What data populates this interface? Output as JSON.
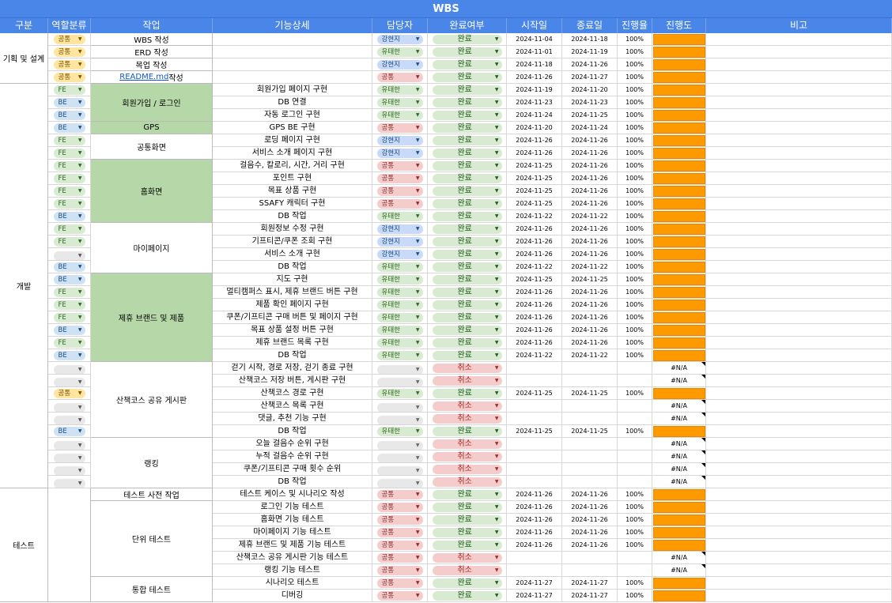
{
  "title": "WBS",
  "headers": [
    "구분",
    "역할분류",
    "작업",
    "기능상세",
    "담당자",
    "완료여부",
    "시작일",
    "종료일",
    "진행율",
    "진행도",
    "비고"
  ],
  "categories": [
    {
      "label": "기획 및 설계",
      "start": 0,
      "end": 4
    },
    {
      "label": "개발",
      "start": 4,
      "end": 36
    },
    {
      "label": "테스트",
      "start": 36,
      "end": 45
    }
  ],
  "tasks": [
    {
      "label": "WBS 작성",
      "start": 0,
      "end": 1,
      "green": false
    },
    {
      "label": "ERD 작성",
      "start": 1,
      "end": 2,
      "green": false
    },
    {
      "label": "목업 작성",
      "start": 2,
      "end": 3,
      "green": false
    },
    {
      "label": "README.md 작성",
      "start": 3,
      "end": 4,
      "green": false
    },
    {
      "label": "회원가입 / 로그인",
      "start": 4,
      "end": 7,
      "green": true
    },
    {
      "label": "GPS",
      "start": 7,
      "end": 8,
      "green": true
    },
    {
      "label": "공통화면",
      "start": 8,
      "end": 10,
      "green": false
    },
    {
      "label": "홈화면",
      "start": 10,
      "end": 15,
      "green": true
    },
    {
      "label": "마이페이지",
      "start": 15,
      "end": 19,
      "green": false
    },
    {
      "label": "제휴 브랜드 및 제품",
      "start": 19,
      "end": 26,
      "green": true
    },
    {
      "label": "산책코스 공유 게시판",
      "start": 26,
      "end": 32,
      "green": false
    },
    {
      "label": "랭킹",
      "start": 32,
      "end": 36,
      "green": false
    },
    {
      "label": "테스트 사전 작업",
      "start": 36,
      "end": 37,
      "green": false
    },
    {
      "label": "단위 테스트",
      "start": 37,
      "end": 43,
      "green": false
    },
    {
      "label": "통합 테스트",
      "start": 43,
      "end": 45,
      "green": false
    }
  ],
  "readme": {
    "link_text": "README.md",
    "suffix": " 작성"
  },
  "rows": [
    {
      "role": "공통",
      "detail": "",
      "owner": "강현지",
      "done": "완료",
      "start": "2024-11-04",
      "end": "2024-11-18",
      "pct": "100%",
      "progress": 1.0,
      "note": ""
    },
    {
      "role": "공통",
      "detail": "",
      "owner": "유태한",
      "done": "완료",
      "start": "2024-11-01",
      "end": "2024-11-19",
      "pct": "100%",
      "progress": 1.0,
      "note": ""
    },
    {
      "role": "공통",
      "detail": "",
      "owner": "강현지",
      "done": "완료",
      "start": "2024-11-18",
      "end": "2024-11-26",
      "pct": "100%",
      "progress": 1.0,
      "note": ""
    },
    {
      "role": "공통",
      "detail": "",
      "owner": "공통",
      "done": "완료",
      "start": "2024-11-26",
      "end": "2024-11-27",
      "pct": "100%",
      "progress": 1.0,
      "note": ""
    },
    {
      "role": "FE",
      "detail": "회원가입 페이지 구현",
      "owner": "유태한",
      "done": "완료",
      "start": "2024-11-19",
      "end": "2024-11-20",
      "pct": "100%",
      "progress": 1.0,
      "note": ""
    },
    {
      "role": "BE",
      "detail": "DB 연결",
      "owner": "유태한",
      "done": "완료",
      "start": "2024-11-23",
      "end": "2024-11-23",
      "pct": "100%",
      "progress": 1.0,
      "note": ""
    },
    {
      "role": "BE",
      "detail": "자동 로그인 구현",
      "owner": "유태한",
      "done": "완료",
      "start": "2024-11-24",
      "end": "2024-11-25",
      "pct": "100%",
      "progress": 1.0,
      "note": ""
    },
    {
      "role": "BE",
      "detail": "GPS BE 구현",
      "owner": "공통",
      "done": "완료",
      "start": "2024-11-20",
      "end": "2024-11-24",
      "pct": "100%",
      "progress": 1.0,
      "note": ""
    },
    {
      "role": "FE",
      "detail": "로딩 페이지 구현",
      "owner": "강현지",
      "done": "완료",
      "start": "2024-11-26",
      "end": "2024-11-26",
      "pct": "100%",
      "progress": 1.0,
      "note": ""
    },
    {
      "role": "FE",
      "detail": "서비스 소개 페이지 구현",
      "owner": "강현지",
      "done": "완료",
      "start": "2024-11-26",
      "end": "2024-11-26",
      "pct": "100%",
      "progress": 1.0,
      "note": ""
    },
    {
      "role": "FE",
      "detail": "걸음수, 칼로리, 시간, 거리 구현",
      "owner": "공통",
      "done": "완료",
      "start": "2024-11-25",
      "end": "2024-11-26",
      "pct": "100%",
      "progress": 1.0,
      "note": ""
    },
    {
      "role": "FE",
      "detail": "포인트 구현",
      "owner": "공통",
      "done": "완료",
      "start": "2024-11-25",
      "end": "2024-11-26",
      "pct": "100%",
      "progress": 1.0,
      "note": ""
    },
    {
      "role": "FE",
      "detail": "목표 상품 구현",
      "owner": "공통",
      "done": "완료",
      "start": "2024-11-25",
      "end": "2024-11-26",
      "pct": "100%",
      "progress": 1.0,
      "note": ""
    },
    {
      "role": "FE",
      "detail": "SSAFY 캐릭터 구현",
      "owner": "공통",
      "done": "완료",
      "start": "2024-11-25",
      "end": "2024-11-26",
      "pct": "100%",
      "progress": 1.0,
      "note": ""
    },
    {
      "role": "BE",
      "detail": "DB 작업",
      "owner": "유태한",
      "done": "완료",
      "start": "2024-11-22",
      "end": "2024-11-22",
      "pct": "100%",
      "progress": 1.0,
      "note": ""
    },
    {
      "role": "FE",
      "detail": "회원정보 수정 구현",
      "owner": "강현지",
      "done": "완료",
      "start": "2024-11-26",
      "end": "2024-11-26",
      "pct": "100%",
      "progress": 1.0,
      "note": ""
    },
    {
      "role": "FE",
      "detail": "기프티콘/쿠폰 조회 구현",
      "owner": "강현지",
      "done": "완료",
      "start": "2024-11-26",
      "end": "2024-11-26",
      "pct": "100%",
      "progress": 1.0,
      "note": ""
    },
    {
      "role": "",
      "detail": "서비스 소개 구현",
      "owner": "강현지",
      "done": "완료",
      "start": "2024-11-26",
      "end": "2024-11-26",
      "pct": "100%",
      "progress": 1.0,
      "note": ""
    },
    {
      "role": "BE",
      "detail": "DB 작업",
      "owner": "유태한",
      "done": "완료",
      "start": "2024-11-22",
      "end": "2024-11-22",
      "pct": "100%",
      "progress": 1.0,
      "note": ""
    },
    {
      "role": "BE",
      "detail": "지도 구현",
      "owner": "유태한",
      "done": "완료",
      "start": "2024-11-25",
      "end": "2024-11-25",
      "pct": "100%",
      "progress": 1.0,
      "note": ""
    },
    {
      "role": "FE",
      "detail": "멀티캠퍼스 표시, 제휴 브랜드 버튼 구현",
      "owner": "유태한",
      "done": "완료",
      "start": "2024-11-26",
      "end": "2024-11-26",
      "pct": "100%",
      "progress": 1.0,
      "note": ""
    },
    {
      "role": "FE",
      "detail": "제품 확인 페이지 구현",
      "owner": "유태한",
      "done": "완료",
      "start": "2024-11-26",
      "end": "2024-11-26",
      "pct": "100%",
      "progress": 1.0,
      "note": ""
    },
    {
      "role": "FE",
      "detail": "쿠폰/기프티콘 구매 버튼 및 페이지 구현",
      "owner": "유태한",
      "done": "완료",
      "start": "2024-11-26",
      "end": "2024-11-26",
      "pct": "100%",
      "progress": 1.0,
      "note": ""
    },
    {
      "role": "BE",
      "detail": "목표 상품 설정 버튼 구현",
      "owner": "유태한",
      "done": "완료",
      "start": "2024-11-26",
      "end": "2024-11-26",
      "pct": "100%",
      "progress": 1.0,
      "note": ""
    },
    {
      "role": "FE",
      "detail": "제휴 브랜드 목록 구현",
      "owner": "유태한",
      "done": "완료",
      "start": "2024-11-26",
      "end": "2024-11-26",
      "pct": "100%",
      "progress": 1.0,
      "note": ""
    },
    {
      "role": "BE",
      "detail": "DB 작업",
      "owner": "유태한",
      "done": "완료",
      "start": "2024-11-22",
      "end": "2024-11-22",
      "pct": "100%",
      "progress": 1.0,
      "note": ""
    },
    {
      "role": "",
      "detail": "걷기 시작, 경로 저장, 걷기 종료 구현",
      "owner": "",
      "done": "취소",
      "start": "",
      "end": "",
      "pct": "",
      "progress": 0,
      "note": "#N/A"
    },
    {
      "role": "",
      "detail": "산책코스 저장 버튼, 게시판 구현",
      "owner": "",
      "done": "취소",
      "start": "",
      "end": "",
      "pct": "",
      "progress": 0,
      "note": "#N/A"
    },
    {
      "role": "공통",
      "detail": "산책코스 경로 구현",
      "owner": "유태한",
      "done": "완료",
      "start": "2024-11-25",
      "end": "2024-11-25",
      "pct": "100%",
      "progress": 1.0,
      "note": ""
    },
    {
      "role": "",
      "detail": "산책코스 목록 구현",
      "owner": "",
      "done": "취소",
      "start": "",
      "end": "",
      "pct": "",
      "progress": 0,
      "note": "#N/A"
    },
    {
      "role": "",
      "detail": "댓글, 추천 기능 구현",
      "owner": "",
      "done": "취소",
      "start": "",
      "end": "",
      "pct": "",
      "progress": 0,
      "note": "#N/A"
    },
    {
      "role": "BE",
      "detail": "DB 작업",
      "owner": "유태한",
      "done": "완료",
      "start": "2024-11-25",
      "end": "2024-11-25",
      "pct": "100%",
      "progress": 1.0,
      "note": ""
    },
    {
      "role": "",
      "detail": "오늘 걸음수 순위 구현",
      "owner": "",
      "done": "취소",
      "start": "",
      "end": "",
      "pct": "",
      "progress": 0,
      "note": "#N/A"
    },
    {
      "role": "",
      "detail": "누적 걸음수 순위 구현",
      "owner": "",
      "done": "취소",
      "start": "",
      "end": "",
      "pct": "",
      "progress": 0,
      "note": "#N/A"
    },
    {
      "role": "",
      "detail": "쿠폰/기프티콘 구매 횟수 순위",
      "owner": "",
      "done": "취소",
      "start": "",
      "end": "",
      "pct": "",
      "progress": 0,
      "note": "#N/A"
    },
    {
      "role": "",
      "detail": "DB 작업",
      "owner": "",
      "done": "취소",
      "start": "",
      "end": "",
      "pct": "",
      "progress": 0,
      "note": "#N/A"
    },
    {
      "role": null,
      "detail": "테스트 케이스 및 시나리오 작성",
      "owner": "공통",
      "done": "완료",
      "start": "2024-11-26",
      "end": "2024-11-26",
      "pct": "100%",
      "progress": 1.0,
      "note": ""
    },
    {
      "role": null,
      "detail": "로그인 기능 테스트",
      "owner": "공통",
      "done": "완료",
      "start": "2024-11-26",
      "end": "2024-11-26",
      "pct": "100%",
      "progress": 1.0,
      "note": ""
    },
    {
      "role": null,
      "detail": "홈화면 기능 테스트",
      "owner": "공통",
      "done": "완료",
      "start": "2024-11-26",
      "end": "2024-11-26",
      "pct": "100%",
      "progress": 1.0,
      "note": ""
    },
    {
      "role": null,
      "detail": "마이페이지 기능 테스트",
      "owner": "공통",
      "done": "완료",
      "start": "2024-11-26",
      "end": "2024-11-26",
      "pct": "100%",
      "progress": 1.0,
      "note": ""
    },
    {
      "role": null,
      "detail": "제휴 브랜드 및 제품 기능 테스트",
      "owner": "공통",
      "done": "완료",
      "start": "2024-11-26",
      "end": "2024-11-26",
      "pct": "100%",
      "progress": 1.0,
      "note": ""
    },
    {
      "role": null,
      "detail": "산책코스 공유 게시판 기능 테스트",
      "owner": "공통",
      "done": "취소",
      "start": "",
      "end": "",
      "pct": "",
      "progress": 0,
      "note": "#N/A"
    },
    {
      "role": null,
      "detail": "랭킹 기능 테스트",
      "owner": "공통",
      "done": "취소",
      "start": "",
      "end": "",
      "pct": "",
      "progress": 0,
      "note": "#N/A"
    },
    {
      "role": null,
      "detail": "시나리오 테스트",
      "owner": "공통",
      "done": "완료",
      "start": "2024-11-27",
      "end": "2024-11-27",
      "pct": "100%",
      "progress": 1.0,
      "note": ""
    },
    {
      "role": null,
      "detail": "디버깅",
      "owner": "공통",
      "done": "완료",
      "start": "2024-11-27",
      "end": "2024-11-27",
      "pct": "100%",
      "progress": 1.0,
      "note": ""
    }
  ],
  "colors": {
    "header": "#4a86e8",
    "progress_bar": "#ff9900",
    "group_green": "#b6d7a8"
  }
}
